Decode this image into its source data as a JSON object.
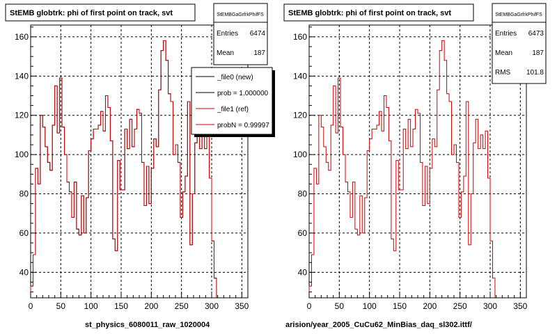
{
  "panels": [
    {
      "title": "StEMB globtrk: phi of first point on track, svt",
      "stats": {
        "name": "StEMBGaGrfrkPhifFS",
        "rows": [
          {
            "label": "Entries",
            "value": "6474"
          },
          {
            "label": "Mean",
            "value": "187"
          }
        ]
      },
      "legend": [
        {
          "label": "_file0 (new)",
          "color": "#000000"
        },
        {
          "label": "prob = 1.000000",
          "color": "#000000"
        },
        {
          "label": "_file1 (ref)",
          "color": "#cc0000"
        },
        {
          "label": "probN = 0.99997",
          "color": "#cc0000"
        }
      ],
      "xlabel": "st_physics_6080011_raw_1020004"
    },
    {
      "title": "StEMB globtrk: phi of first point on track, svt",
      "stats": {
        "name": "StEMBGaGrfrkPhifFS",
        "rows": [
          {
            "label": "Entries",
            "value": "6473"
          },
          {
            "label": "Mean",
            "value": "187"
          },
          {
            "label": "RMS",
            "value": "101.8"
          }
        ]
      },
      "legend": [],
      "xlabel": "arision/year_2005_CuCu62_MinBias_daq_sl302.ittf/"
    }
  ],
  "chart_data": [
    {
      "type": "histogram",
      "title": "StEMB globtrk: phi of first point on track, svt",
      "xlabel": "st_physics_6080011_raw_1020004",
      "xlim": [
        0,
        360
      ],
      "ylim": [
        27,
        166
      ],
      "xticks": [
        0,
        50,
        100,
        150,
        200,
        250,
        300,
        350
      ],
      "yticks": [
        40,
        60,
        80,
        100,
        120,
        140,
        160
      ],
      "grid": true,
      "legend_position": "top-right",
      "bin_width": 4,
      "series": [
        {
          "name": "_file0 (new)",
          "color": "#000000",
          "values": [
            33,
            49,
            93,
            85,
            120,
            114,
            104,
            96,
            92,
            115,
            135,
            111,
            139,
            114,
            100,
            86,
            81,
            68,
            86,
            62,
            59,
            79,
            60,
            78,
            102,
            108,
            113,
            113,
            115,
            122,
            112,
            130,
            124,
            107,
            57,
            51,
            97,
            82,
            82,
            113,
            103,
            118,
            104,
            113,
            123,
            121,
            96,
            74,
            94,
            75,
            93,
            108,
            104,
            133,
            153,
            158,
            148,
            131,
            127,
            100,
            105,
            96,
            68,
            81,
            89,
            127,
            54,
            80,
            106,
            118,
            103,
            110,
            103,
            112,
            88,
            56,
            37
          ]
        },
        {
          "name": "_file1 (ref)",
          "color": "#cc0000",
          "values": [
            33,
            49,
            93,
            85,
            120,
            114,
            104,
            96,
            92,
            115,
            135,
            111,
            139,
            114,
            100,
            86,
            81,
            68,
            86,
            62,
            59,
            79,
            60,
            78,
            102,
            108,
            113,
            113,
            115,
            122,
            112,
            130,
            124,
            107,
            57,
            51,
            97,
            82,
            82,
            113,
            103,
            118,
            104,
            113,
            123,
            121,
            96,
            74,
            94,
            75,
            93,
            108,
            104,
            133,
            153,
            158,
            148,
            131,
            127,
            100,
            105,
            96,
            68,
            81,
            89,
            127,
            54,
            80,
            106,
            118,
            103,
            110,
            103,
            112,
            88,
            56,
            37
          ]
        }
      ]
    },
    {
      "type": "histogram",
      "title": "StEMB globtrk: phi of first point on track, svt",
      "xlabel": "arision/year_2005_CuCu62_MinBias_daq_sl302.ittf/",
      "xlim": [
        0,
        360
      ],
      "ylim": [
        27,
        166
      ],
      "xticks": [
        0,
        50,
        100,
        150,
        200,
        250,
        300,
        350
      ],
      "yticks": [
        40,
        60,
        80,
        100,
        120,
        140,
        160
      ],
      "grid": true,
      "bin_width": 4,
      "series": [
        {
          "color": "#cc0000",
          "values": [
            33,
            49,
            93,
            85,
            120,
            114,
            104,
            96,
            92,
            115,
            135,
            111,
            139,
            114,
            100,
            86,
            81,
            68,
            86,
            62,
            59,
            79,
            60,
            78,
            102,
            108,
            113,
            113,
            115,
            122,
            112,
            130,
            124,
            107,
            57,
            51,
            97,
            82,
            82,
            113,
            103,
            118,
            104,
            113,
            123,
            121,
            96,
            74,
            94,
            75,
            93,
            108,
            104,
            133,
            153,
            158,
            148,
            131,
            127,
            100,
            105,
            96,
            68,
            81,
            89,
            127,
            54,
            80,
            106,
            118,
            103,
            110,
            103,
            112,
            88,
            56,
            37
          ]
        }
      ]
    }
  ]
}
